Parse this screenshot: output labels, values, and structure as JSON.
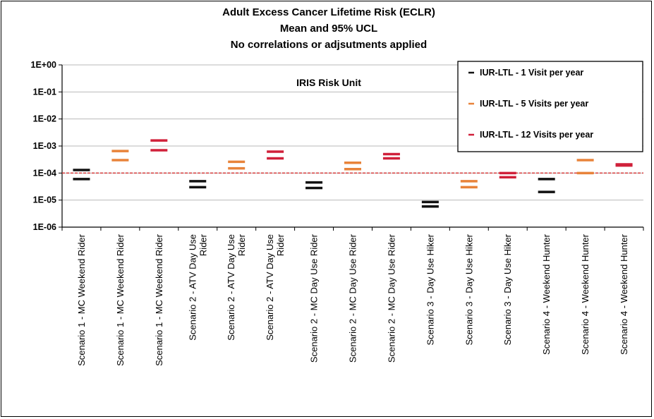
{
  "chart_data": {
    "type": "scatter",
    "title": [
      "Adult Excess Cancer Lifetime Risk (ECLR)",
      "Mean and 95% UCL",
      "No correlations or adjsutments applied"
    ],
    "annotation": "IRIS Risk Unit",
    "y_scale": "log",
    "ylim": [
      1e-06,
      1
    ],
    "y_ticks": [
      {
        "value": 1,
        "label": "1E+00"
      },
      {
        "value": 0.1,
        "label": "1E-01"
      },
      {
        "value": 0.01,
        "label": "1E-02"
      },
      {
        "value": 0.001,
        "label": "1E-03"
      },
      {
        "value": 0.0001,
        "label": "1E-04"
      },
      {
        "value": 1e-05,
        "label": "1E-05"
      },
      {
        "value": 1e-06,
        "label": "1E-06"
      }
    ],
    "reference_line": {
      "value": 0.0001,
      "color": "#d32f2f"
    },
    "grid": true,
    "legend_position": "top-right",
    "categories": [
      [
        "Scenario 1 - MC Weekend Rider"
      ],
      [
        "Scenario 1 - MC Weekend Rider"
      ],
      [
        "Scenario 1 - MC Weekend Rider"
      ],
      [
        "Scenario 2 - ATV Day Use",
        "Rider"
      ],
      [
        "Scenario 2 - ATV Day Use",
        "Rider"
      ],
      [
        "Scenario 2 - ATV Day Use",
        "Rider"
      ],
      [
        "Scenario 2 - MC Day Use Rider"
      ],
      [
        "Scenario 2 - MC Day Use Rider"
      ],
      [
        "Scenario 2 - MC Day Use Rider"
      ],
      [
        "Scenario 3 - Day Use Hiker"
      ],
      [
        "Scenario 3 - Day Use Hiker"
      ],
      [
        "Scenario 3 - Day Use Hiker"
      ],
      [
        "Scenario 4 - Weekend Hunter"
      ],
      [
        "Scenario 4 - Weekend Hunter"
      ],
      [
        "Scenario 4 - Weekend Hunter"
      ]
    ],
    "series": [
      {
        "name": "IUR-LTL - 1 Visit per year",
        "color": "#111111",
        "points": [
          {
            "index": 0,
            "mean": 6e-05,
            "ucl": 0.00013
          },
          {
            "index": 3,
            "mean": 3e-05,
            "ucl": 5e-05
          },
          {
            "index": 6,
            "mean": 2.8e-05,
            "ucl": 4.5e-05
          },
          {
            "index": 9,
            "mean": 5.8e-06,
            "ucl": 8.5e-06
          },
          {
            "index": 12,
            "mean": 2e-05,
            "ucl": 6e-05
          }
        ]
      },
      {
        "name": "IUR-LTL - 5 Visits per year",
        "color": "#e8833a",
        "points": [
          {
            "index": 1,
            "mean": 0.0003,
            "ucl": 0.00065
          },
          {
            "index": 4,
            "mean": 0.00015,
            "ucl": 0.00026
          },
          {
            "index": 7,
            "mean": 0.00014,
            "ucl": 0.00024
          },
          {
            "index": 10,
            "mean": 3e-05,
            "ucl": 5e-05
          },
          {
            "index": 13,
            "mean": 0.0001,
            "ucl": 0.0003
          }
        ]
      },
      {
        "name": "IUR-LTL - 12 Visits per year",
        "color": "#d0203a",
        "points": [
          {
            "index": 2,
            "mean": 0.0007,
            "ucl": 0.0016
          },
          {
            "index": 5,
            "mean": 0.00035,
            "ucl": 0.00062
          },
          {
            "index": 8,
            "mean": 0.00035,
            "ucl": 0.0005
          },
          {
            "index": 11,
            "mean": 7e-05,
            "ucl": 0.0001
          },
          {
            "index": 14,
            "mean": 0.00019,
            "ucl": 0.00021
          }
        ]
      }
    ]
  }
}
